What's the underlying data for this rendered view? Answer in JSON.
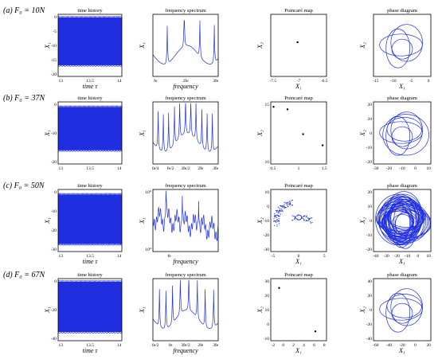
{
  "rows": [
    {
      "label": "(a) F₀ = 10N",
      "time": {
        "title": "time history",
        "ylabel": "X₁",
        "xlabel": "time τ",
        "xticks": [
          "13",
          "13.5",
          "14"
        ],
        "yticks": [
          "0",
          "-5",
          "-10",
          "-15",
          "-20"
        ]
      },
      "spec": {
        "title": "frequency spectrum",
        "ylabel": "X₁",
        "xlabel": "frequency",
        "xticks": [
          "fe",
          "2fe",
          "3fe"
        ]
      },
      "poin": {
        "title": "Poincaré map",
        "ylabel": "X₂",
        "xlabel": "X₁",
        "xticks": [
          "-7.5",
          "-7",
          "-6.5"
        ]
      },
      "phase": {
        "title": "phase diagram",
        "ylabel": "X₂",
        "xlabel": "X₁",
        "xticks": [
          "-15",
          "-10",
          "-5",
          "0"
        ]
      }
    },
    {
      "label": "(b) F₀ = 37N",
      "time": {
        "title": "time history",
        "ylabel": "X₁",
        "xlabel": "",
        "xticks": [
          "13",
          "13.5",
          "14"
        ],
        "yticks": [
          "0",
          "-10",
          "-20"
        ]
      },
      "spec": {
        "title": "frequency spectrum",
        "ylabel": "X₁",
        "xlabel": "",
        "xticks": [
          "fe/4",
          "fe/2",
          "3fe/2",
          "2fe",
          "3fe"
        ]
      },
      "poin": {
        "title": "Poincaré map",
        "ylabel": "X₂",
        "xlabel": "",
        "xticks": [
          "0.5",
          "1",
          "1.5"
        ],
        "yticks": [
          "15",
          "10"
        ]
      },
      "phase": {
        "title": "phase diagram",
        "ylabel": "X₂",
        "xlabel": "",
        "xticks": [
          "-30",
          "-20",
          "-10",
          "0",
          "10"
        ],
        "yticks": [
          "20",
          "10",
          "0",
          "-10",
          "-20"
        ]
      }
    },
    {
      "label": "(c) F₀ = 50N",
      "time": {
        "title": "time history",
        "ylabel": "X₁",
        "xlabel": "time τ",
        "xticks": [
          "13",
          "13.5",
          "14"
        ],
        "yticks": [
          "0",
          "-10",
          "-20",
          "-30"
        ]
      },
      "spec": {
        "title": "frequency spectrum",
        "ylabel": "X₁",
        "xlabel": "frequency",
        "xticks": [
          "fe"
        ],
        "yticks": [
          "10⁰",
          "10⁰"
        ]
      },
      "poin": {
        "title": "Poincaré map",
        "ylabel": "X₂",
        "xlabel": "X₁",
        "xticks": [
          "-5",
          "0",
          "5"
        ],
        "yticks": [
          "10",
          "0",
          "-10",
          "-20",
          "-30"
        ]
      },
      "phase": {
        "title": "phase diagram",
        "ylabel": "X₂",
        "xlabel": "X₁",
        "xticks": [
          "-40",
          "-30",
          "-20",
          "-10",
          "0",
          "10"
        ],
        "yticks": [
          "20",
          "10",
          "0",
          "-10",
          "-20"
        ]
      }
    },
    {
      "label": "(d) F₀ = 67N",
      "time": {
        "title": "time history",
        "ylabel": "X₁",
        "xlabel": "time τ",
        "xticks": [
          "13",
          "13.5",
          "14"
        ],
        "yticks": [
          "0",
          "-20",
          "-40"
        ]
      },
      "spec": {
        "title": "frequency spectrum",
        "ylabel": "X₁",
        "xlabel": "frequency",
        "xticks": [
          "fe/2",
          "fe",
          "3fe/2",
          "2fe",
          "3fe"
        ]
      },
      "poin": {
        "title": "Poincaré map",
        "ylabel": "X₂",
        "xlabel": "X₁",
        "xticks": [
          "-2",
          "0",
          "2",
          "4",
          "6",
          "8"
        ],
        "yticks": [
          "30",
          "20",
          "10",
          "0",
          "-10"
        ]
      },
      "phase": {
        "title": "phase diagram",
        "ylabel": "X₂",
        "xlabel": "X₁",
        "xticks": [
          "-60",
          "-40",
          "-20",
          "0",
          "20"
        ],
        "yticks": [
          "40",
          "20",
          "0",
          "-20",
          "-40"
        ]
      }
    }
  ]
}
